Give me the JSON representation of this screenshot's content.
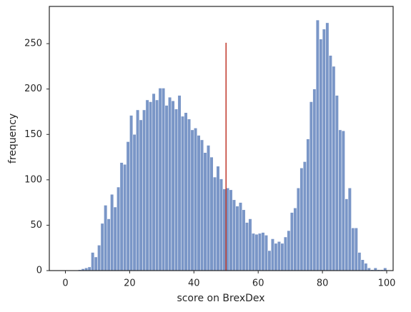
{
  "chart_data": {
    "type": "histogram",
    "xlabel": "score on BrexDex",
    "ylabel": "frequency",
    "bins": [
      0,
      1,
      2,
      3,
      4,
      5,
      6,
      7,
      8,
      9,
      10,
      11,
      12,
      13,
      14,
      15,
      16,
      17,
      18,
      19,
      20,
      21,
      22,
      23,
      24,
      25,
      26,
      27,
      28,
      29,
      30,
      31,
      32,
      33,
      34,
      35,
      36,
      37,
      38,
      39,
      40,
      41,
      42,
      43,
      44,
      45,
      46,
      47,
      48,
      49,
      50,
      51,
      52,
      53,
      54,
      55,
      56,
      57,
      58,
      59,
      60,
      61,
      62,
      63,
      64,
      65,
      66,
      67,
      68,
      69,
      70,
      71,
      72,
      73,
      74,
      75,
      76,
      77,
      78,
      79,
      80,
      81,
      82,
      83,
      84,
      85,
      86,
      87,
      88,
      89,
      90,
      91,
      92,
      93,
      94,
      95,
      96,
      97,
      98,
      99,
      100
    ],
    "counts": [
      0,
      0,
      0,
      0,
      1,
      2,
      3,
      4,
      20,
      15,
      28,
      52,
      72,
      57,
      84,
      70,
      92,
      119,
      117,
      142,
      171,
      150,
      177,
      166,
      177,
      188,
      186,
      195,
      188,
      201,
      201,
      182,
      191,
      187,
      178,
      193,
      170,
      174,
      167,
      155,
      157,
      149,
      144,
      130,
      138,
      125,
      103,
      115,
      101,
      90,
      91,
      89,
      78,
      71,
      75,
      67,
      53,
      57,
      41,
      40,
      41,
      42,
      39,
      22,
      35,
      30,
      32,
      30,
      37,
      44,
      64,
      69,
      91,
      113,
      120,
      145,
      186,
      200,
      276,
      255,
      266,
      273,
      237,
      225,
      193,
      155,
      154,
      79,
      91,
      47,
      47,
      20,
      12,
      8,
      3,
      1,
      3,
      1,
      1,
      3
    ],
    "color": "#7a96c7",
    "vline": {
      "x": 50,
      "y": [
        0,
        251
      ],
      "color": "#c0392b"
    },
    "xlim": [
      -5,
      102
    ],
    "ylim": [
      0,
      291
    ],
    "xticks": [
      0,
      20,
      40,
      60,
      80,
      100
    ],
    "yticks": [
      0,
      50,
      100,
      150,
      200,
      250
    ],
    "grid": false
  }
}
